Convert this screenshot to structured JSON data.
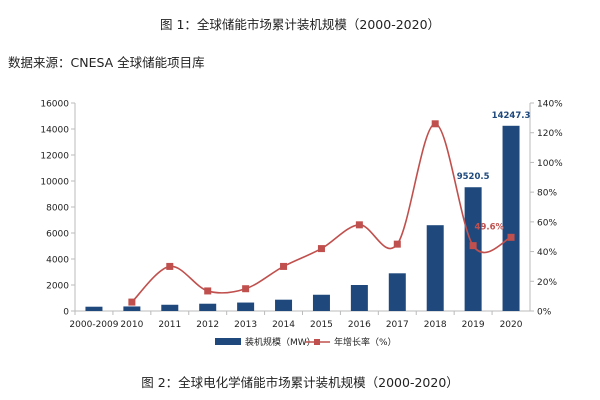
{
  "title_top": "图 1：全球储能市场累计装机规模（2000-2020）",
  "source": "数据来源：CNESA 全球储能项目库",
  "title_bottom": "图 2：全球电化学储能市场累计装机规模（2000-2020）",
  "chart_data": {
    "type": "bar+line",
    "categories": [
      "2000-2009",
      "2010",
      "2011",
      "2012",
      "2013",
      "2014",
      "2015",
      "2016",
      "2017",
      "2018",
      "2019",
      "2020"
    ],
    "series": [
      {
        "name": "装机规模（MW）",
        "type": "bar",
        "axis": "left",
        "color": "#1f497d",
        "values": [
          330,
          350,
          480,
          560,
          650,
          870,
          1250,
          2000,
          2900,
          6600,
          9520.5,
          14247.3
        ]
      },
      {
        "name": "年增长率（%）",
        "type": "line",
        "axis": "right",
        "color": "#c0504d",
        "values": [
          null,
          6,
          30,
          13.5,
          15,
          30,
          42,
          58,
          45,
          126,
          44,
          49.6
        ]
      }
    ],
    "data_labels": [
      {
        "category": "2019",
        "text": "9520.5",
        "series": "装机规模（MW）"
      },
      {
        "category": "2020",
        "text": "14247.3",
        "series": "装机规模（MW）"
      },
      {
        "category": "2020",
        "text": "49.6%",
        "series": "年增长率（%）"
      }
    ],
    "ylim_left": [
      0,
      16000
    ],
    "yticks_left": [
      "0",
      "2000",
      "4000",
      "6000",
      "8000",
      "10000",
      "12000",
      "14000",
      "16000"
    ],
    "ylim_right": [
      0,
      140
    ],
    "yticks_right": [
      "0%",
      "20%",
      "40%",
      "60%",
      "80%",
      "100%",
      "120%",
      "140%"
    ],
    "grid": false,
    "legend": "bottom"
  }
}
